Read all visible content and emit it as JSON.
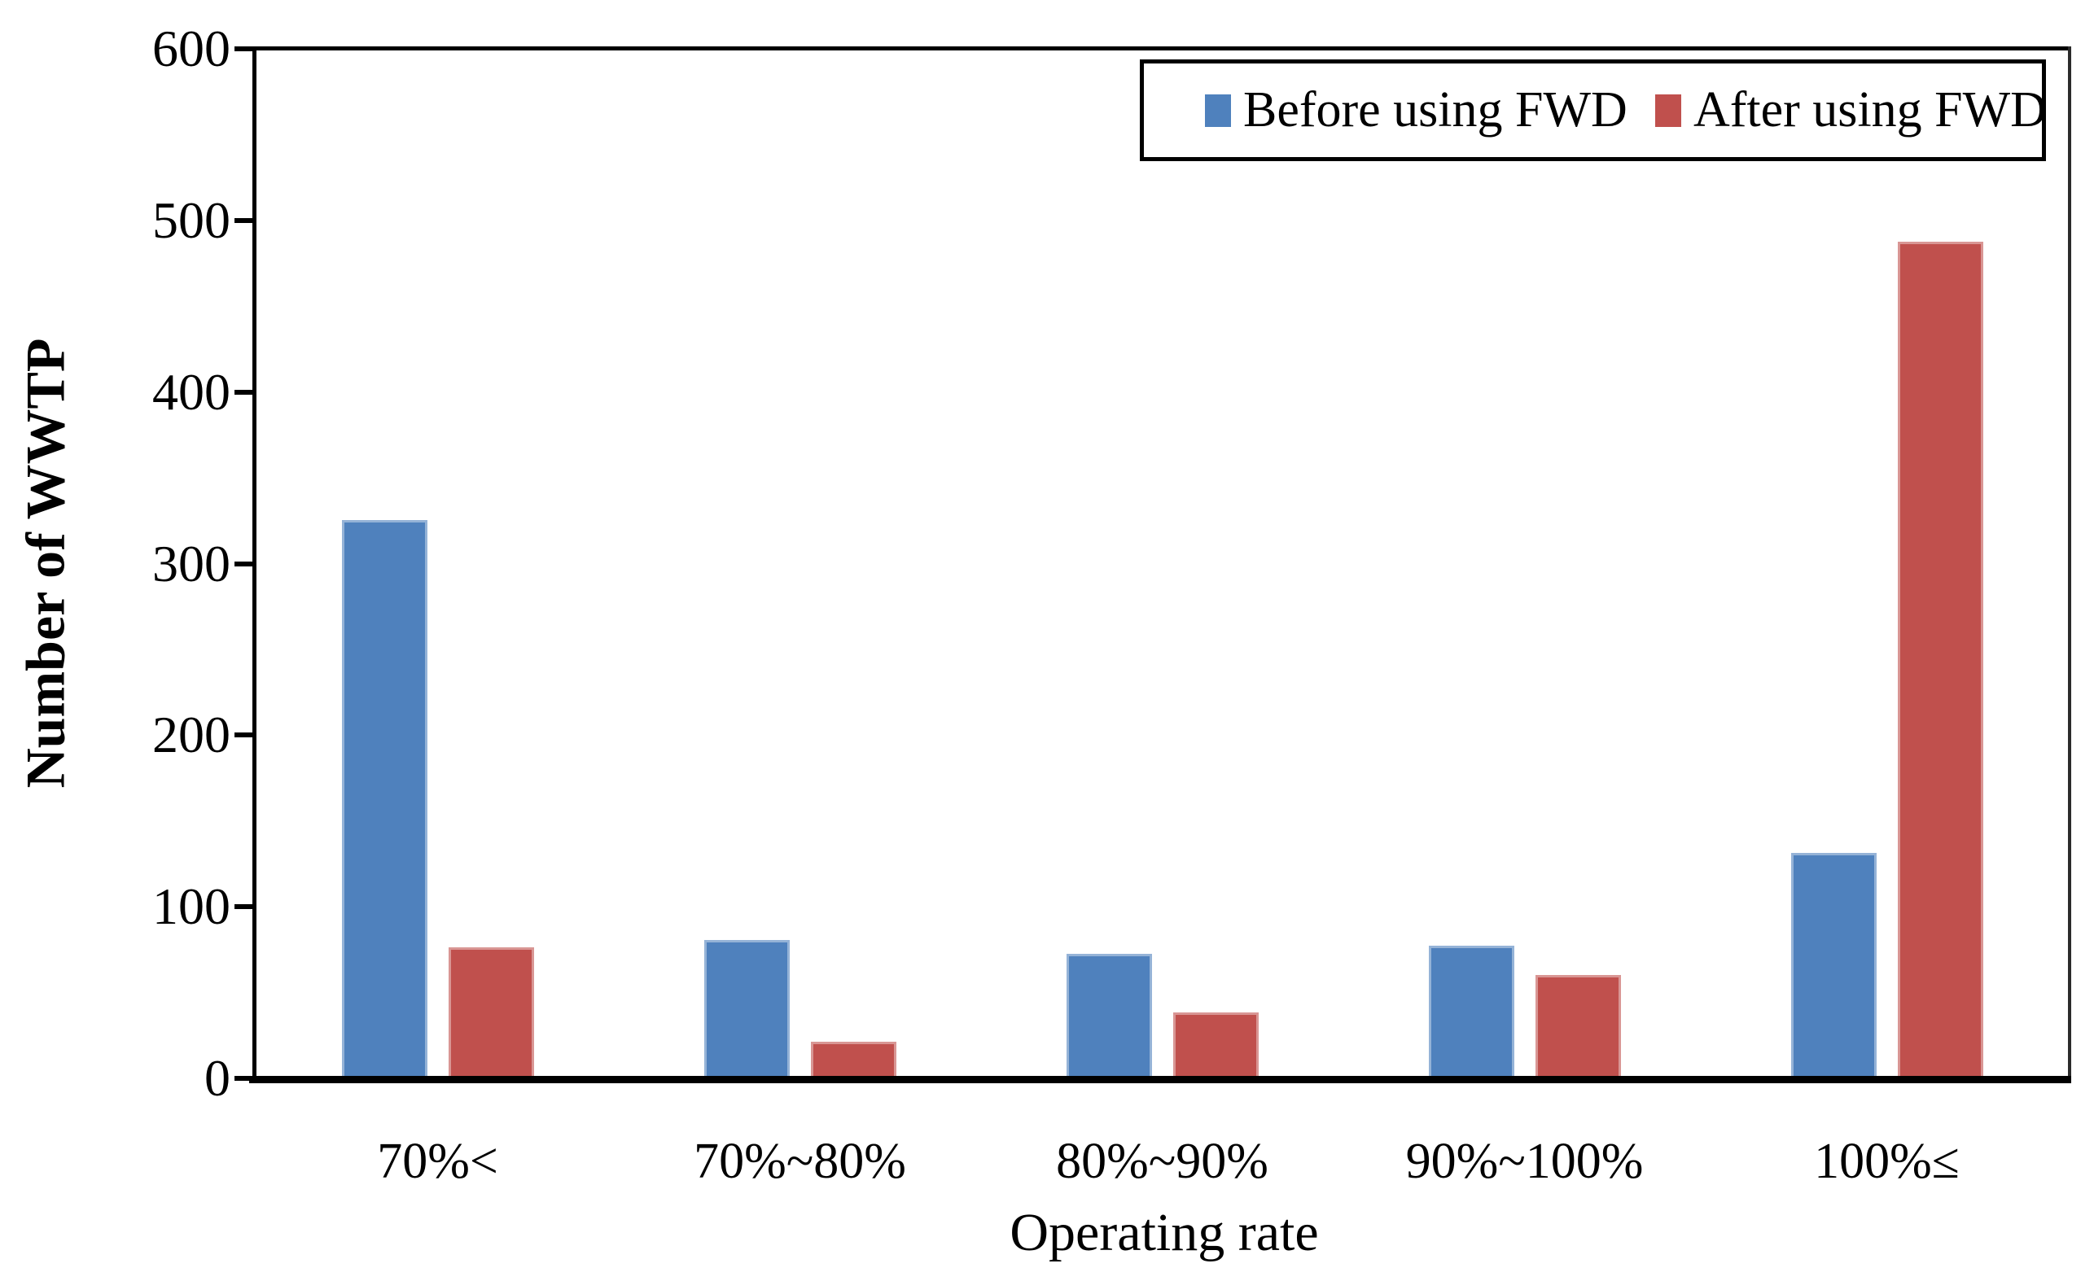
{
  "chart_data": {
    "type": "bar",
    "title": "",
    "xlabel": "Operating rate",
    "ylabel": "Number of WWTP",
    "categories": [
      "70%<",
      "70%~80%",
      "80%~90%",
      "90%~100%",
      "100%≤"
    ],
    "series": [
      {
        "name": "Before using FWD",
        "color": "#4F81BD",
        "edge_color": "#95B3D7",
        "values": [
          324,
          79,
          71,
          76,
          130
        ]
      },
      {
        "name": "After using FWD",
        "color": "#C0504D",
        "edge_color": "#D99694",
        "values": [
          75,
          20,
          37,
          59,
          486
        ]
      }
    ],
    "ylim": [
      0,
      600
    ],
    "yticks": [
      0,
      100,
      200,
      300,
      400,
      500,
      600
    ],
    "grid": false,
    "legend_position": "top-right-inside-box",
    "axis_color": "#000000",
    "background_color": "#ffffff"
  }
}
